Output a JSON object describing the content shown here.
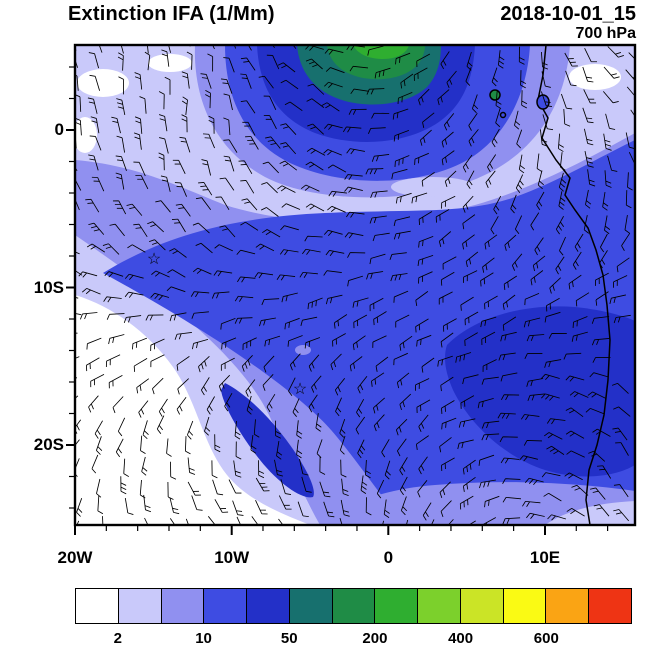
{
  "header": {
    "title": "Extinction IFA (1/Mm)",
    "datetime": "2018-10-01_15",
    "level": "700 hPa"
  },
  "axes": {
    "y_tick_labels": [
      "0",
      "10S",
      "20S"
    ],
    "x_tick_labels": [
      "20W",
      "10W",
      "0",
      "10E"
    ]
  },
  "colorbar": {
    "colors": [
      "#ffffff",
      "#c9c9fa",
      "#9090f0",
      "#3e4ce2",
      "#2330c8",
      "#17706e",
      "#1f8c46",
      "#2fae30",
      "#7cd02c",
      "#cbe426",
      "#fafa14",
      "#faa414",
      "#ee3414"
    ],
    "tick_labels": [
      "2",
      "10",
      "50",
      "200",
      "400",
      "600"
    ],
    "boundaries": [
      2,
      5,
      10,
      20,
      50,
      100,
      200,
      300,
      400,
      500,
      600,
      700
    ]
  },
  "map": {
    "marker_glyph": "☆",
    "markers": [
      {
        "name": "star-1",
        "approx_lon": "14.5W",
        "approx_lat": "8S"
      },
      {
        "name": "star-2",
        "approx_lon": "5.5W",
        "approx_lat": "16S"
      }
    ]
  },
  "chart_data": {
    "type": "heatmap",
    "title": "Extinction IFA (1/Mm)",
    "valid_time": "2018-10-01_15",
    "pressure_level": "700 hPa",
    "units": "1/Mm",
    "x_axis": {
      "tick_labels": [
        "20W",
        "10W",
        "0",
        "10E"
      ],
      "approx_range": [
        "20W",
        "15E"
      ]
    },
    "y_axis": {
      "tick_labels": [
        "0",
        "10S",
        "20S"
      ],
      "approx_range": [
        "5N",
        "25S"
      ]
    },
    "color_scale": {
      "boundaries": [
        2,
        5,
        10,
        20,
        50,
        100,
        200,
        300,
        400,
        500,
        600,
        700
      ],
      "labeled_boundaries": [
        2,
        10,
        50,
        200,
        400,
        600
      ],
      "colors": [
        "#ffffff",
        "#c9c9fa",
        "#9090f0",
        "#3e4ce2",
        "#2330c8",
        "#17706e",
        "#1f8c46",
        "#2fae30",
        "#7cd02c",
        "#cbe426",
        "#fafa14",
        "#faa414",
        "#ee3414"
      ]
    },
    "overlays": [
      "wind barbs (700 hPa winds)",
      "African coastline",
      "two star markers"
    ],
    "features": [
      "elevated extinction plume (50-300 1/Mm, blue to teal/green core) at top of domain near 0-5E north of equator",
      "broad moderate extinction (10-50 1/Mm, royal blue) over the southeast Atlantic and along the Angola coast",
      "darker 20-50 1/Mm patches along the coast near 10-15S and a narrow streak near 5W, 16-20S",
      "clean air (<2 1/Mm, white) in the southwest corner of the domain"
    ]
  }
}
